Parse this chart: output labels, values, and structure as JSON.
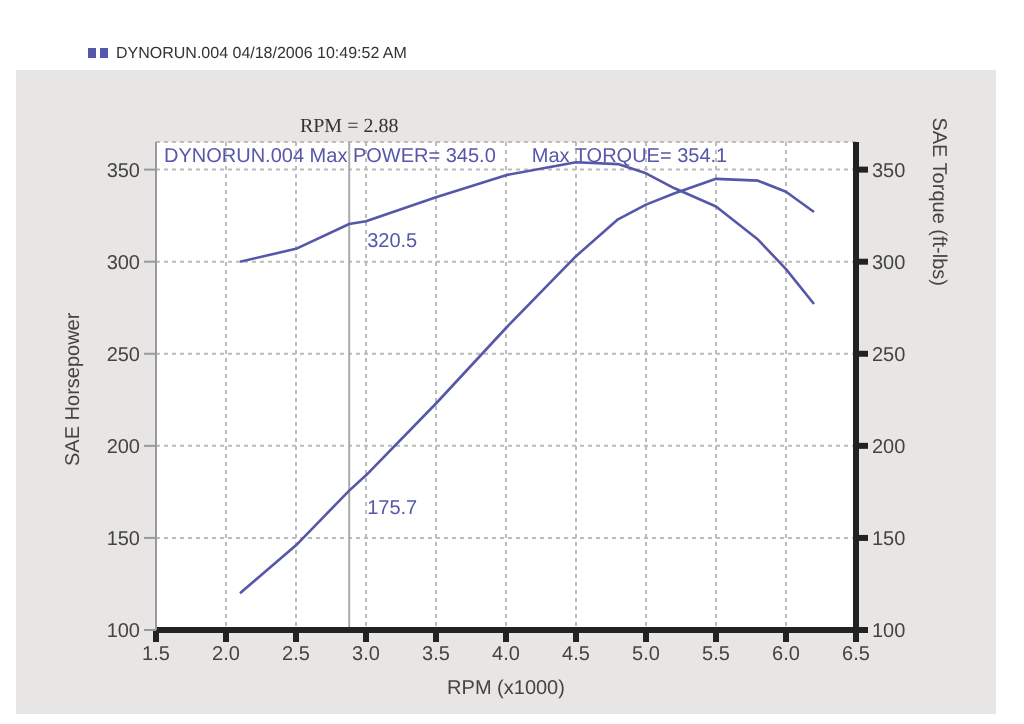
{
  "chart_data": {
    "type": "line",
    "subtitle": "DYNORUN.004  04/18/2006 10:49:52 AM",
    "xlabel": "RPM (x1000)",
    "ylabel": "SAE Horsepower",
    "y2label": "SAE Torque (ft-lbs)",
    "annotations": [
      "DYNORUN.004  Max POWER= 345.0",
      "Max TORQUE= 354.1",
      {
        "text": "320.5",
        "x": 2.88,
        "y": 320.5
      },
      {
        "text": "175.7",
        "x": 2.88,
        "y": 175.7
      }
    ],
    "x": [
      2.1,
      2.5,
      2.88,
      3.0,
      3.5,
      4.0,
      4.5,
      4.8,
      5.0,
      5.2,
      5.5,
      5.8,
      6.0,
      6.2
    ],
    "series": [
      {
        "color": "#5558a8",
        "values": [
          120,
          146,
          175.7,
          184,
          223,
          264,
          303,
          323,
          331,
          337,
          345,
          344,
          338,
          327
        ]
      },
      {
        "color": "#5558a8",
        "axis": "y2",
        "values": [
          300,
          307,
          320.5,
          322,
          335,
          347,
          354,
          353,
          348,
          340,
          330,
          312,
          296,
          277
        ]
      }
    ],
    "xlim": [
      1.5,
      6.5
    ],
    "xticks": [
      1.5,
      {
        "value": 2,
        "label": "2.0"
      },
      2.5,
      {
        "value": 3,
        "label": "3.0"
      },
      3.5,
      {
        "value": 4,
        "label": "4.0"
      },
      4.5,
      {
        "value": 5,
        "label": "5.0"
      },
      5.5,
      {
        "value": 6,
        "label": "6.0"
      },
      6.5
    ],
    "ylim": [
      100,
      365
    ],
    "yticks": [
      100,
      150,
      200,
      250,
      300,
      350
    ],
    "y2lim": [
      100,
      365
    ],
    "y2ticks": [
      100,
      150,
      200,
      250,
      300,
      350
    ],
    "ref_lines": [
      {
        "axis": "x",
        "value": 2.88,
        "label": "RPM = 2.88",
        "color": "#aaaaaa"
      }
    ],
    "grid": true,
    "marker": "none",
    "line_style": "solid"
  }
}
